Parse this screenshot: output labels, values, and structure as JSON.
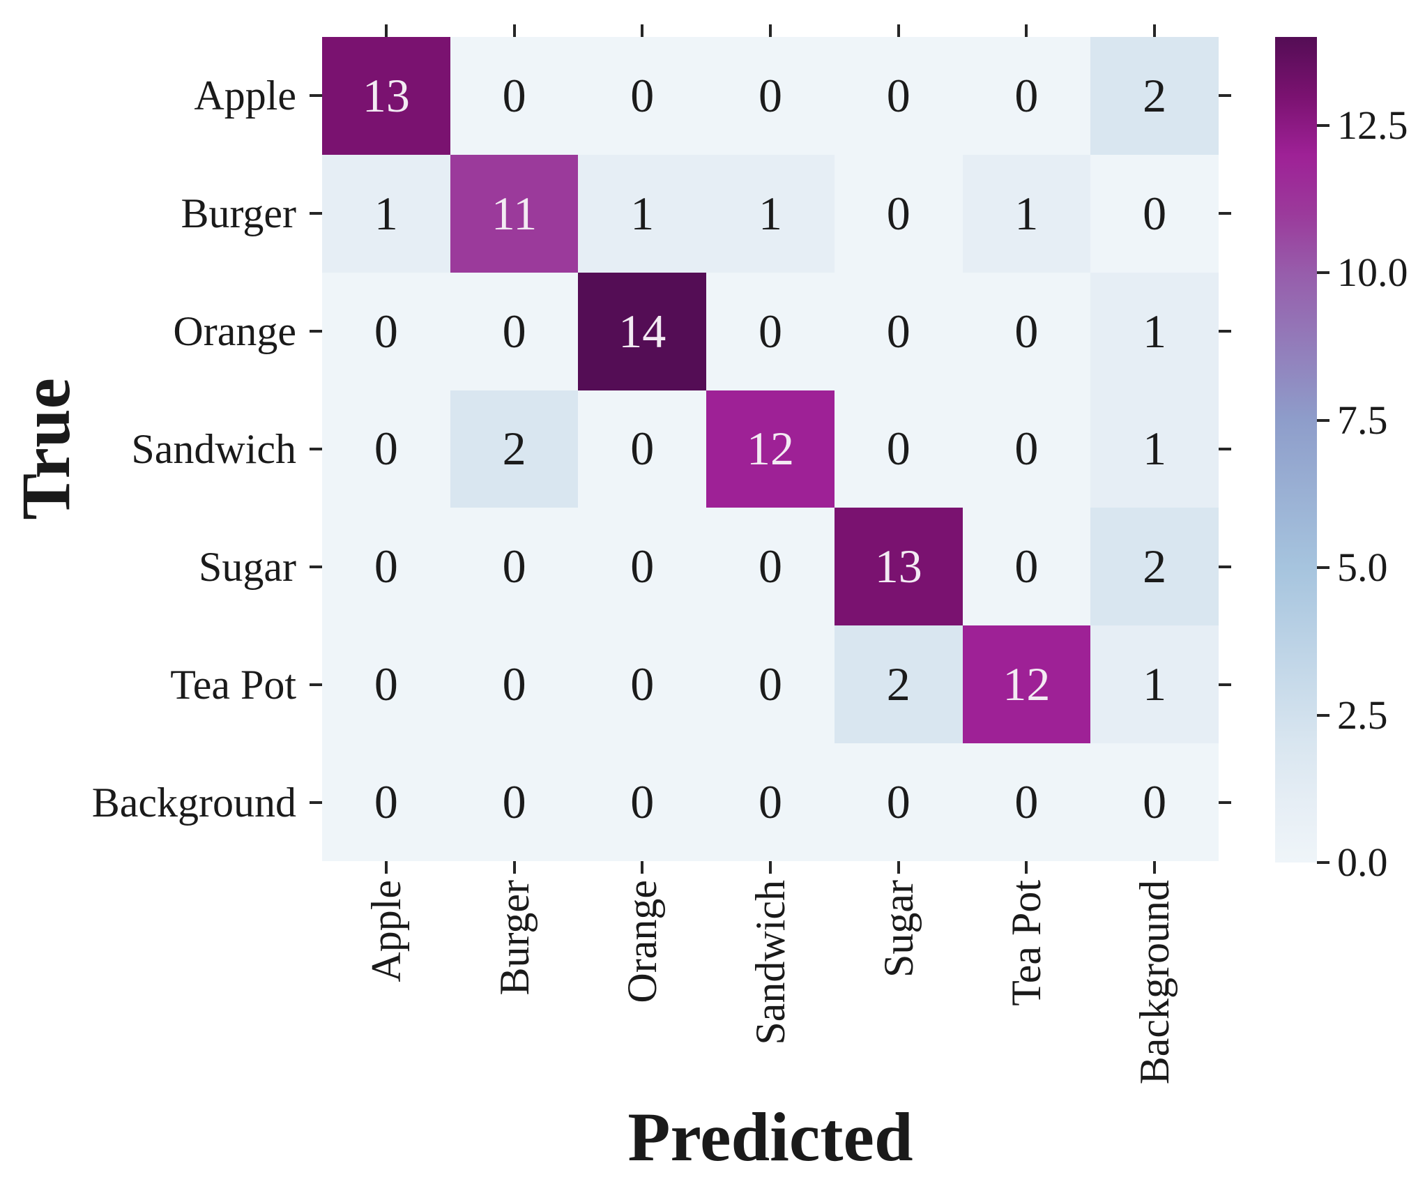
{
  "figure": {
    "background": "#ffffff",
    "tick_color": "#262626",
    "label_color": "#1a1a1a"
  },
  "chart_data": {
    "type": "heatmap",
    "title": "",
    "xlabel": "Predicted",
    "ylabel": "True",
    "x_categories": [
      "Apple",
      "Burger",
      "Orange",
      "Sandwich",
      "Sugar",
      "Tea Pot",
      "Background"
    ],
    "y_categories": [
      "Apple",
      "Burger",
      "Orange",
      "Sandwich",
      "Sugar",
      "Tea Pot",
      "Background"
    ],
    "matrix": [
      [
        13,
        0,
        0,
        0,
        0,
        0,
        2
      ],
      [
        1,
        11,
        1,
        1,
        0,
        1,
        0
      ],
      [
        0,
        0,
        14,
        0,
        0,
        0,
        1
      ],
      [
        0,
        2,
        0,
        12,
        0,
        0,
        1
      ],
      [
        0,
        0,
        0,
        0,
        13,
        0,
        2
      ],
      [
        0,
        0,
        0,
        0,
        2,
        12,
        1
      ],
      [
        0,
        0,
        0,
        0,
        0,
        0,
        0
      ]
    ],
    "vmin": 0,
    "vmax": 14,
    "grid": false,
    "legend_position": "right-colorbar",
    "colorbar": {
      "tick_values": [
        0,
        2.5,
        5,
        7.5,
        10,
        12.5
      ],
      "tick_labels": [
        "0.0",
        "2.5",
        "5.0",
        "7.5",
        "10.0",
        "12.5"
      ]
    },
    "colormap_stops": [
      {
        "t": 0.0,
        "color": "#eff5f9"
      },
      {
        "t": 0.071,
        "color": "#e6eef5"
      },
      {
        "t": 0.143,
        "color": "#d9e6f0"
      },
      {
        "t": 0.357,
        "color": "#a6c4de"
      },
      {
        "t": 0.536,
        "color": "#8e9dca"
      },
      {
        "t": 0.714,
        "color": "#975dab"
      },
      {
        "t": 0.786,
        "color": "#9b3a9b"
      },
      {
        "t": 0.857,
        "color": "#9e2196"
      },
      {
        "t": 0.929,
        "color": "#7a1270"
      },
      {
        "t": 1.0,
        "color": "#540d55"
      }
    ],
    "annotation_text_dark": "#1b1b1b",
    "annotation_text_light": "#f3ebf3"
  }
}
